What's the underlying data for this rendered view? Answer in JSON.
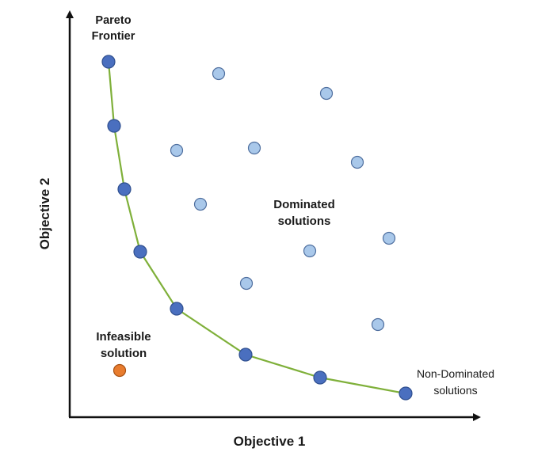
{
  "diagram": {
    "x_axis_label": "Objective 1",
    "y_axis_label": "Objective 2",
    "pareto_label": [
      "Pareto",
      "Frontier"
    ],
    "dominated_label": [
      "Dominated",
      "solutions"
    ],
    "infeasible_label": [
      "Infeasible",
      "solution"
    ],
    "non_dominated_label": [
      "Non-Dominated",
      "solutions"
    ]
  },
  "colors": {
    "frontier_point": "#4a6fbf",
    "frontier_point_stroke": "#2f4f8f",
    "frontier_line": "#7fb03a",
    "dominated_point": "#a9c8ea",
    "dominated_point_stroke": "#4f6f9f",
    "infeasible_point": "#e87c2e",
    "infeasible_point_stroke": "#a85214",
    "axis": "#111111"
  }
}
